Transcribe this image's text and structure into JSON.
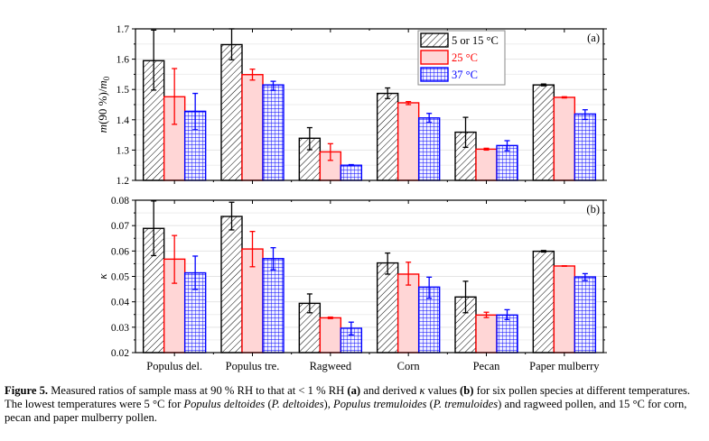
{
  "chart_data": [
    {
      "type": "bar",
      "panel_label": "(a)",
      "title": "",
      "xlabel": "",
      "ylabel": "m(90 %)/m0",
      "ylim": [
        1.2,
        1.7
      ],
      "yticks": [
        "1.2",
        "1.3",
        "1.4",
        "1.5",
        "1.6",
        "1.7"
      ],
      "ytick_values": [
        1.2,
        1.3,
        1.4,
        1.5,
        1.6,
        1.7
      ],
      "grid": true,
      "legend_position": "top-right",
      "categories": [
        "Populus del.",
        "Populus tre.",
        "Ragweed",
        "Corn",
        "Pecan",
        "Paper mulberry"
      ],
      "series": [
        {
          "name": "5 or 15 °C",
          "color": "#000000",
          "fill": "hatch",
          "values": [
            1.595,
            1.648,
            1.339,
            1.487,
            1.359,
            1.515
          ],
          "err_low": [
            1.498,
            1.598,
            1.301,
            1.47,
            1.309,
            1.512
          ],
          "err_high": [
            1.696,
            1.7,
            1.374,
            1.505,
            1.408,
            1.518
          ]
        },
        {
          "name": "25 °C",
          "color": "#ff0000",
          "fill": "#ffd6d6",
          "values": [
            1.476,
            1.549,
            1.294,
            1.456,
            1.303,
            1.474
          ],
          "err_low": [
            1.385,
            1.531,
            1.266,
            1.45,
            1.3,
            1.472
          ],
          "err_high": [
            1.569,
            1.567,
            1.321,
            1.46,
            1.306,
            1.476
          ]
        },
        {
          "name": "37 °C",
          "color": "#0000ff",
          "fill": "grid",
          "values": [
            1.428,
            1.515,
            1.25,
            1.406,
            1.315,
            1.419
          ],
          "err_low": [
            1.367,
            1.497,
            1.248,
            1.391,
            1.298,
            1.401
          ],
          "err_high": [
            1.487,
            1.527,
            1.252,
            1.421,
            1.331,
            1.433
          ]
        }
      ]
    },
    {
      "type": "bar",
      "panel_label": "(b)",
      "title": "",
      "xlabel": "",
      "ylabel": "κ",
      "ylim": [
        0.02,
        0.08
      ],
      "yticks": [
        "0.02",
        "0.03",
        "0.04",
        "0.05",
        "0.06",
        "0.07",
        "0.08"
      ],
      "ytick_values": [
        0.02,
        0.03,
        0.04,
        0.05,
        0.06,
        0.07,
        0.08
      ],
      "grid": true,
      "categories": [
        "Populus del.",
        "Populus tre.",
        "Ragweed",
        "Corn",
        "Pecan",
        "Paper mulberry"
      ],
      "series": [
        {
          "name": "5 or 15 °C",
          "color": "#000000",
          "fill": "hatch",
          "values": [
            0.0689,
            0.0736,
            0.0394,
            0.0553,
            0.0419,
            0.0599
          ],
          "err_low": [
            0.0582,
            0.0683,
            0.0357,
            0.0509,
            0.0357,
            0.0596
          ],
          "err_high": [
            0.0797,
            0.0792,
            0.0431,
            0.0592,
            0.0481,
            0.0602
          ]
        },
        {
          "name": "25 °C",
          "color": "#ff0000",
          "fill": "#ffd6d6",
          "values": [
            0.0568,
            0.0608,
            0.0337,
            0.0509,
            0.0348,
            0.0541
          ],
          "err_low": [
            0.0473,
            0.0538,
            0.0334,
            0.0466,
            0.0338,
            0.054
          ],
          "err_high": [
            0.0661,
            0.0677,
            0.034,
            0.0556,
            0.0359,
            0.0542
          ]
        },
        {
          "name": "37 °C",
          "color": "#0000ff",
          "fill": "grid",
          "values": [
            0.0514,
            0.057,
            0.0296,
            0.0458,
            0.0348,
            0.0498
          ],
          "err_low": [
            0.0449,
            0.0526,
            0.027,
            0.0414,
            0.033,
            0.0484
          ],
          "err_high": [
            0.058,
            0.0613,
            0.032,
            0.0497,
            0.0369,
            0.0511
          ]
        }
      ]
    }
  ],
  "caption": {
    "label": "Figure 5.",
    "segments": [
      {
        "t": " Measured ratios of sample mass at 90 % RH to that at < 1 % RH ",
        "s": ""
      },
      {
        "t": "(a)",
        "s": "b"
      },
      {
        "t": " and derived ",
        "s": ""
      },
      {
        "t": "κ",
        "s": "i"
      },
      {
        "t": " values ",
        "s": ""
      },
      {
        "t": "(b)",
        "s": "b"
      },
      {
        "t": " for six pollen species at different temperatures. The lowest temperatures were 5 °C for ",
        "s": ""
      },
      {
        "t": "Populus deltoides",
        "s": "i"
      },
      {
        "t": " (",
        "s": ""
      },
      {
        "t": "P. deltoides",
        "s": "i"
      },
      {
        "t": "), ",
        "s": ""
      },
      {
        "t": "Populus tremuloides",
        "s": "i"
      },
      {
        "t": " (",
        "s": ""
      },
      {
        "t": "P. tremuloides",
        "s": "i"
      },
      {
        "t": ") and ragweed pollen, and 15 °C for corn, pecan and paper mulberry pollen.",
        "s": ""
      }
    ]
  }
}
